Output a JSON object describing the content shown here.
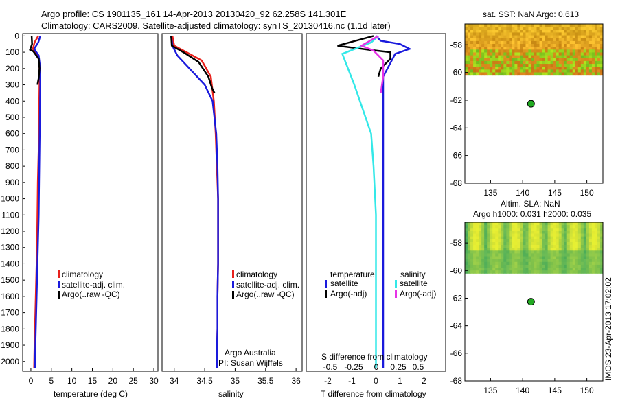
{
  "figure": {
    "title_line1": "Argo profile: CS 1901135_161 14-Apr-2013 20130420_92 62.258S 141.301E",
    "title_line2": "Climatology: CARS2009. Satellite-adjusted climatology: synTS_20130416.nc (1.1d later)",
    "side_stamp": "IMOS 23-Apr-2013 17:02:02",
    "credit_line1": "Argo Australia",
    "credit_line2": "PI: Susan Wijffels"
  },
  "colors": {
    "climatology": "#e8211c",
    "satellite": "#1a1adc",
    "argo": "#000000",
    "salinity_satellite": "#33e8e8",
    "salinity_argo": "#e633e6",
    "marker": "#22aa22"
  },
  "chart_data": [
    {
      "type": "line",
      "id": "temperature",
      "xlabel": "temperature (deg C)",
      "ylabel": "",
      "xlim": [
        -2,
        31
      ],
      "ylim": [
        2060,
        -10
      ],
      "xticks": [
        0,
        5,
        10,
        15,
        20,
        25,
        30
      ],
      "yticks": [
        0,
        100,
        200,
        300,
        400,
        500,
        600,
        700,
        800,
        900,
        1000,
        1100,
        1200,
        1300,
        1400,
        1500,
        1600,
        1700,
        1800,
        1900,
        2000
      ],
      "legend": [
        "climatology",
        "satellite-adj. clim.",
        "Argo(..raw -QC)"
      ],
      "series": [
        {
          "name": "climatology",
          "color": "#e8211c",
          "x": [
            1.8,
            0.9,
            0.5,
            1.8,
            2.1,
            2.1,
            2.0,
            1.9,
            1.7,
            1.6,
            1.5,
            1.3,
            1.1,
            0.9,
            0.8
          ],
          "y": [
            0,
            40,
            80,
            120,
            200,
            300,
            500,
            700,
            900,
            1100,
            1300,
            1500,
            1700,
            1900,
            2040
          ]
        },
        {
          "name": "satellite-adj. clim.",
          "color": "#1a1adc",
          "x": [
            2.3,
            1.8,
            0.8,
            1.9,
            2.3,
            2.3,
            2.2,
            2.1,
            2.0,
            1.9,
            1.7,
            1.5,
            1.3,
            1.1,
            1.0
          ],
          "y": [
            0,
            40,
            80,
            120,
            200,
            300,
            500,
            700,
            900,
            1100,
            1300,
            1500,
            1700,
            1900,
            2040
          ]
        },
        {
          "name": "Argo(..raw -QC)",
          "color": "#000000",
          "x": [
            0.2,
            0.3,
            -0.2,
            0.6,
            1.9,
            2.1,
            1.9,
            1.6
          ],
          "y": [
            0,
            50,
            85,
            95,
            140,
            200,
            260,
            300
          ]
        }
      ]
    },
    {
      "type": "line",
      "id": "salinity",
      "xlabel": "salinity",
      "ylabel": "",
      "xlim": [
        33.8,
        36.1
      ],
      "ylim": [
        2060,
        -10
      ],
      "xticks": [
        34,
        34.5,
        35,
        35.5,
        36
      ],
      "legend": [
        "climatology",
        "satellite-adj. clim.",
        "Argo(..raw -QC)"
      ],
      "series": [
        {
          "name": "climatology",
          "color": "#e8211c",
          "x": [
            33.97,
            34.0,
            34.2,
            34.45,
            34.6,
            34.65,
            34.68,
            34.7,
            34.72,
            34.72,
            34.72,
            34.71,
            34.71,
            34.7,
            34.7
          ],
          "y": [
            0,
            60,
            100,
            150,
            250,
            400,
            600,
            800,
            1000,
            1200,
            1400,
            1600,
            1800,
            1950,
            2040
          ]
        },
        {
          "name": "satellite-adj. clim.",
          "color": "#1a1adc",
          "x": [
            33.95,
            33.97,
            34.05,
            34.25,
            34.5,
            34.63,
            34.69,
            34.71,
            34.72,
            34.72,
            34.72,
            34.71,
            34.71,
            34.7,
            34.7
          ],
          "y": [
            0,
            60,
            120,
            200,
            300,
            400,
            600,
            800,
            1000,
            1200,
            1400,
            1600,
            1800,
            1950,
            2040
          ]
        },
        {
          "name": "Argo(..raw -QC)",
          "color": "#000000",
          "x": [
            33.95,
            33.96,
            34.15,
            34.4,
            34.56,
            34.62,
            34.66
          ],
          "y": [
            0,
            60,
            100,
            160,
            250,
            320,
            350
          ]
        }
      ]
    },
    {
      "type": "line",
      "id": "difference",
      "xlabel": "T difference from climatology",
      "xlabel_top": "S difference from climatology",
      "ylabel": "",
      "xlim": [
        -2.9,
        2.9
      ],
      "ylim": [
        2060,
        -10
      ],
      "xticks": [
        -2,
        -1,
        0,
        1,
        2
      ],
      "s_xticks": [
        "-0.5",
        "-0.25",
        "0",
        "0.25",
        "0.5"
      ],
      "legend_title_t": "temperature",
      "legend_title_s": "salinity",
      "legend": [
        "satellite",
        "Argo(-adj)",
        "satellite",
        "Argo(-adj)"
      ],
      "series": [
        {
          "name": "satellite",
          "group": "temperature",
          "color": "#1a1adc",
          "x": [
            0.0,
            0.2,
            1.0,
            1.4,
            0.8,
            0.3,
            0.3,
            0.3,
            0.3,
            0.3,
            0.3
          ],
          "y": [
            0,
            30,
            50,
            80,
            110,
            250,
            500,
            900,
            1300,
            1700,
            2040
          ]
        },
        {
          "name": "Argo(-adj)",
          "group": "temperature",
          "color": "#000000",
          "x": [
            -0.1,
            -1.6,
            -0.3,
            0.6,
            0.6,
            0.2,
            0.1
          ],
          "y": [
            0,
            60,
            85,
            100,
            140,
            200,
            250
          ]
        },
        {
          "name": "satellite",
          "group": "salinity",
          "color": "#33e8e8",
          "x": [
            0.1,
            -0.2,
            -1.4,
            -0.9,
            -0.2,
            -0.1,
            0.0,
            0.0,
            0.0,
            0.0
          ],
          "y": [
            0,
            40,
            110,
            300,
            600,
            800,
            1100,
            1400,
            1800,
            2040
          ]
        },
        {
          "name": "Argo(-adj)",
          "group": "salinity",
          "color": "#e633e6",
          "x": [
            0.1,
            -0.6,
            -0.1,
            0.3,
            0.3,
            0.2
          ],
          "y": [
            0,
            60,
            90,
            150,
            250,
            350
          ]
        }
      ]
    },
    {
      "type": "heatmap",
      "id": "sst_map",
      "title": "sat. SST: NaN Argo: 0.613",
      "xlim": [
        131,
        152.5
      ],
      "ylim": [
        -68,
        -56.5
      ],
      "xticks": [
        135,
        140,
        145,
        150
      ],
      "yticks": [
        -58,
        -60,
        -62,
        -64,
        -66,
        -68
      ],
      "data_extent_lat": [
        -60.2,
        -56.5
      ],
      "argo_position": {
        "lon": 141.301,
        "lat": -62.258
      }
    },
    {
      "type": "heatmap",
      "id": "sla_map",
      "title_line1": "Altim. SLA: NaN",
      "title_line2": "Argo h1000: 0.031 h2000: 0.035",
      "xlim": [
        131,
        152.5
      ],
      "ylim": [
        -68,
        -56.5
      ],
      "xticks": [
        135,
        140,
        145,
        150
      ],
      "yticks": [
        -58,
        -60,
        -62,
        -64,
        -66,
        -68
      ],
      "data_extent_lat": [
        -60.2,
        -56.5
      ],
      "argo_position": {
        "lon": 141.301,
        "lat": -62.258
      }
    }
  ]
}
